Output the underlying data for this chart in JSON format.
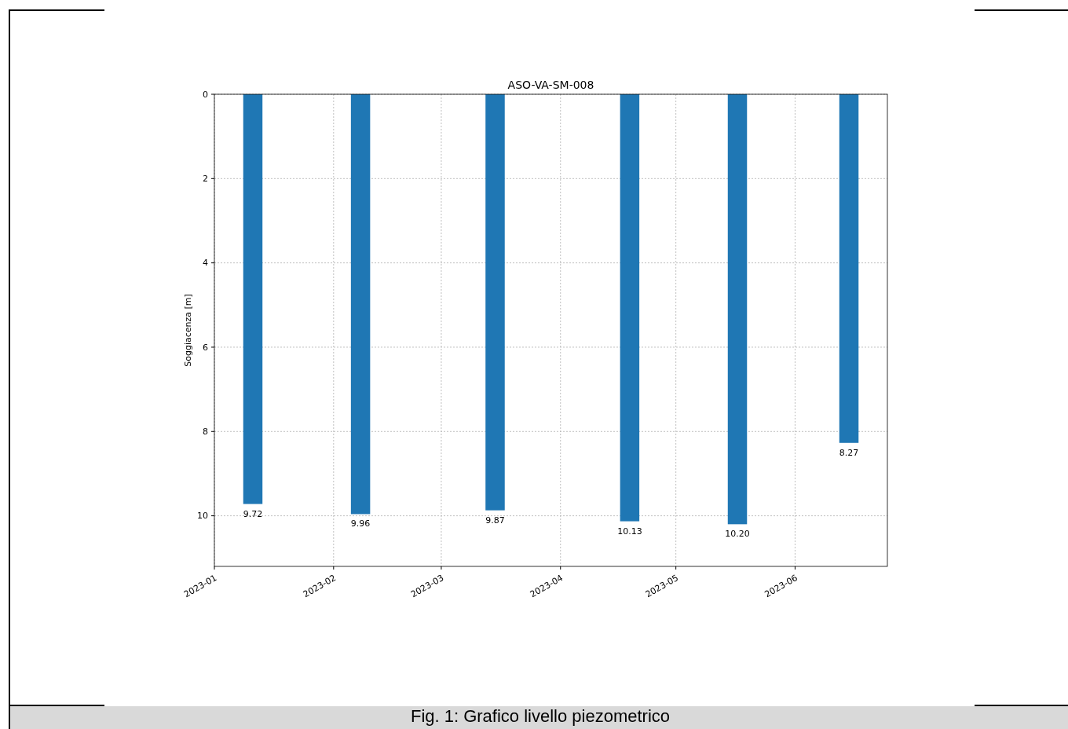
{
  "chart_data": {
    "type": "bar",
    "title": "ASO-VA-SM-008",
    "ylabel": "Soggiacenza [m]",
    "x": [
      "2023-01-11",
      "2023-02-08",
      "2023-03-15",
      "2023-04-19",
      "2023-05-17",
      "2023-06-15"
    ],
    "values": [
      9.72,
      9.96,
      9.87,
      10.13,
      10.2,
      8.27
    ],
    "value_labels": [
      "9.72",
      "9.96",
      "9.87",
      "10.13",
      "10.20",
      "8.27"
    ],
    "color": "#1f77b4",
    "xlim": [
      "2023-01-01",
      "2023-06-25"
    ],
    "xticks": [
      {
        "value": "2023-01-01",
        "label": "2023-01"
      },
      {
        "value": "2023-02-01",
        "label": "2023-02"
      },
      {
        "value": "2023-03-01",
        "label": "2023-03"
      },
      {
        "value": "2023-04-01",
        "label": "2023-04"
      },
      {
        "value": "2023-05-01",
        "label": "2023-05"
      },
      {
        "value": "2023-06-01",
        "label": "2023-06"
      }
    ],
    "ylim": [
      11.2,
      0
    ],
    "yticks": [
      0,
      2,
      4,
      6,
      8,
      10
    ],
    "grid": true,
    "annotations": [
      "Fig. 1: Grafico livello piezometrico"
    ]
  }
}
